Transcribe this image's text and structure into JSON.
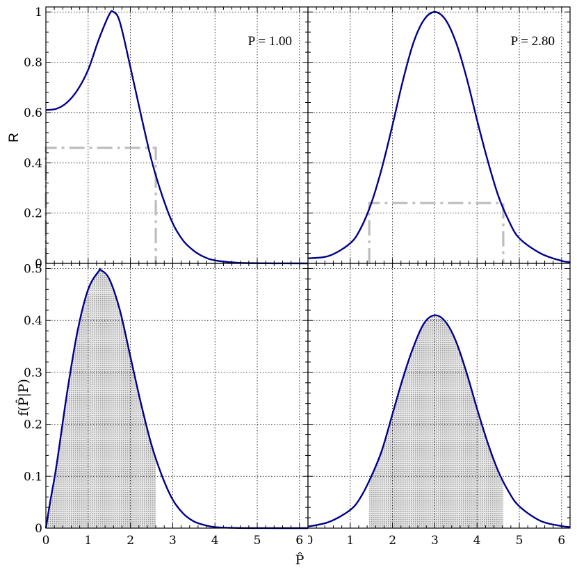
{
  "chart_data": [
    {
      "panel": "top-left",
      "type": "line",
      "annotation": "P = 1.00",
      "ylabel": "R",
      "xlim": [
        0,
        6.2
      ],
      "ylim": [
        0,
        1.02
      ],
      "yticks": [
        "0",
        "0.2",
        "0.4",
        "0.6",
        "0.8",
        "1"
      ],
      "series": [
        {
          "x": [
            0,
            0.25,
            0.5,
            0.75,
            1.0,
            1.25,
            1.5,
            1.6,
            1.75,
            2.0,
            2.25,
            2.5,
            2.75,
            3.0,
            3.25,
            3.5,
            3.75,
            4.0,
            4.5,
            5.0,
            5.5,
            6.2
          ],
          "y": [
            0.61,
            0.615,
            0.64,
            0.69,
            0.77,
            0.89,
            0.99,
            1.0,
            0.96,
            0.78,
            0.59,
            0.41,
            0.27,
            0.16,
            0.09,
            0.05,
            0.025,
            0.012,
            0.003,
            0.0008,
            0.0002,
            0
          ]
        }
      ],
      "bound": {
        "level": 0.46,
        "x_lo": 0,
        "x_hi": 2.6
      }
    },
    {
      "panel": "top-right",
      "type": "line",
      "annotation": "P = 2.80",
      "xlim": [
        0,
        6.2
      ],
      "ylim": [
        0,
        1.02
      ],
      "series": [
        {
          "x": [
            0,
            0.5,
            1.0,
            1.25,
            1.5,
            1.75,
            2.0,
            2.25,
            2.5,
            2.75,
            3.0,
            3.25,
            3.5,
            3.75,
            4.0,
            4.25,
            4.5,
            4.75,
            5.0,
            5.5,
            6.0,
            6.2
          ],
          "y": [
            0.02,
            0.03,
            0.08,
            0.14,
            0.24,
            0.38,
            0.55,
            0.73,
            0.88,
            0.97,
            1.0,
            0.97,
            0.88,
            0.74,
            0.57,
            0.41,
            0.27,
            0.17,
            0.1,
            0.04,
            0.01,
            0.005
          ]
        }
      ],
      "bound": {
        "level": 0.24,
        "x_lo": 1.45,
        "x_hi": 4.62
      }
    },
    {
      "panel": "bottom-left",
      "type": "area",
      "ylabel": "f(P̂|P)",
      "xlabel": "P̂",
      "xlim": [
        0,
        6.2
      ],
      "ylim": [
        0,
        0.51
      ],
      "yticks": [
        "0",
        "0.1",
        "0.2",
        "0.3",
        "0.4",
        "0.5"
      ],
      "xticks": [
        "0",
        "1",
        "2",
        "3",
        "4",
        "5",
        "6"
      ],
      "series": [
        {
          "x": [
            0,
            0.1,
            0.25,
            0.5,
            0.75,
            1.0,
            1.25,
            1.3,
            1.5,
            1.75,
            2.0,
            2.25,
            2.5,
            2.75,
            3.0,
            3.25,
            3.5,
            3.75,
            4.0,
            4.5,
            5.0,
            5.5,
            6.2
          ],
          "y": [
            0,
            0.05,
            0.12,
            0.26,
            0.38,
            0.46,
            0.495,
            0.497,
            0.48,
            0.42,
            0.33,
            0.24,
            0.16,
            0.1,
            0.055,
            0.028,
            0.013,
            0.006,
            0.002,
            0.0004,
            0.0001,
            0,
            0
          ]
        }
      ],
      "shaded": {
        "x_lo": 0,
        "x_hi": 2.6
      }
    },
    {
      "panel": "bottom-right",
      "type": "area",
      "xlim": [
        0,
        6.2
      ],
      "ylim": [
        0,
        0.51
      ],
      "xticks": [
        "0",
        "1",
        "2",
        "3",
        "4",
        "5",
        "6"
      ],
      "series": [
        {
          "x": [
            0,
            0.5,
            1.0,
            1.25,
            1.5,
            1.75,
            2.0,
            2.25,
            2.5,
            2.75,
            3.0,
            3.25,
            3.5,
            3.75,
            4.0,
            4.25,
            4.5,
            4.75,
            5.0,
            5.5,
            6.0,
            6.2
          ],
          "y": [
            0.003,
            0.012,
            0.035,
            0.06,
            0.1,
            0.15,
            0.22,
            0.29,
            0.35,
            0.395,
            0.41,
            0.398,
            0.36,
            0.3,
            0.23,
            0.165,
            0.11,
            0.07,
            0.042,
            0.014,
            0.004,
            0.002
          ]
        }
      ],
      "shaded": {
        "x_lo": 1.45,
        "x_hi": 4.62
      }
    }
  ],
  "colors": {
    "curve": "#00008b",
    "bound": "#bdbdbd",
    "shade": "#c8c8c8"
  }
}
